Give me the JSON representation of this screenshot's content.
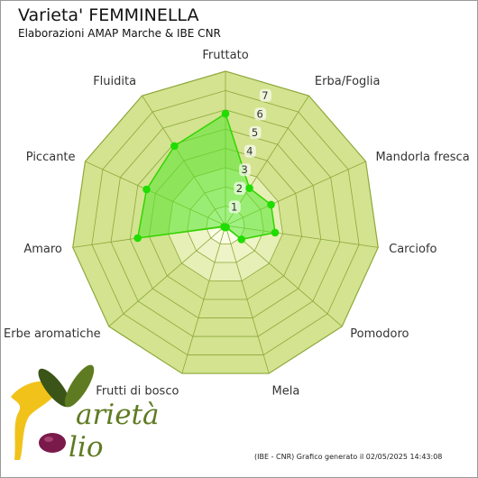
{
  "header": {
    "title": "Varieta' FEMMINELLA",
    "subtitle": "Elaborazioni AMAP Marche & IBE CNR"
  },
  "footer": {
    "note": "(IBE - CNR) Grafico generato il 02/05/2025 14:43:08"
  },
  "logo": {
    "line1": "arietà",
    "line2": "lio"
  },
  "colors": {
    "web_fill": "#d3e390",
    "web_stroke": "#8da838",
    "inner_fill": "#fbfde6",
    "series_fill": "#55e830",
    "series_stroke": "#33d400",
    "point": "#20dd00",
    "logo_gold": "#f1c21a",
    "logo_green": "#5f7b22",
    "logo_dark_green": "#3b5417",
    "logo_purple": "#7a1a4a"
  },
  "chart_data": {
    "type": "radar",
    "categories": [
      "Fruttato",
      "Erba/Foglia",
      "Mandorla fresca",
      "Carciofo",
      "Pomodoro",
      "Mela",
      "Frutti di bosco",
      "Erbe aromatiche",
      "Amaro",
      "Piccante",
      "Fluidita"
    ],
    "values": [
      5.8,
      2.3,
      2.6,
      2.6,
      1.1,
      0.1,
      0.1,
      0.1,
      4.6,
      4.5,
      4.9
    ],
    "rmax": 8,
    "ticks": [
      1,
      2,
      3,
      4,
      5,
      6,
      7
    ],
    "grid": true
  }
}
